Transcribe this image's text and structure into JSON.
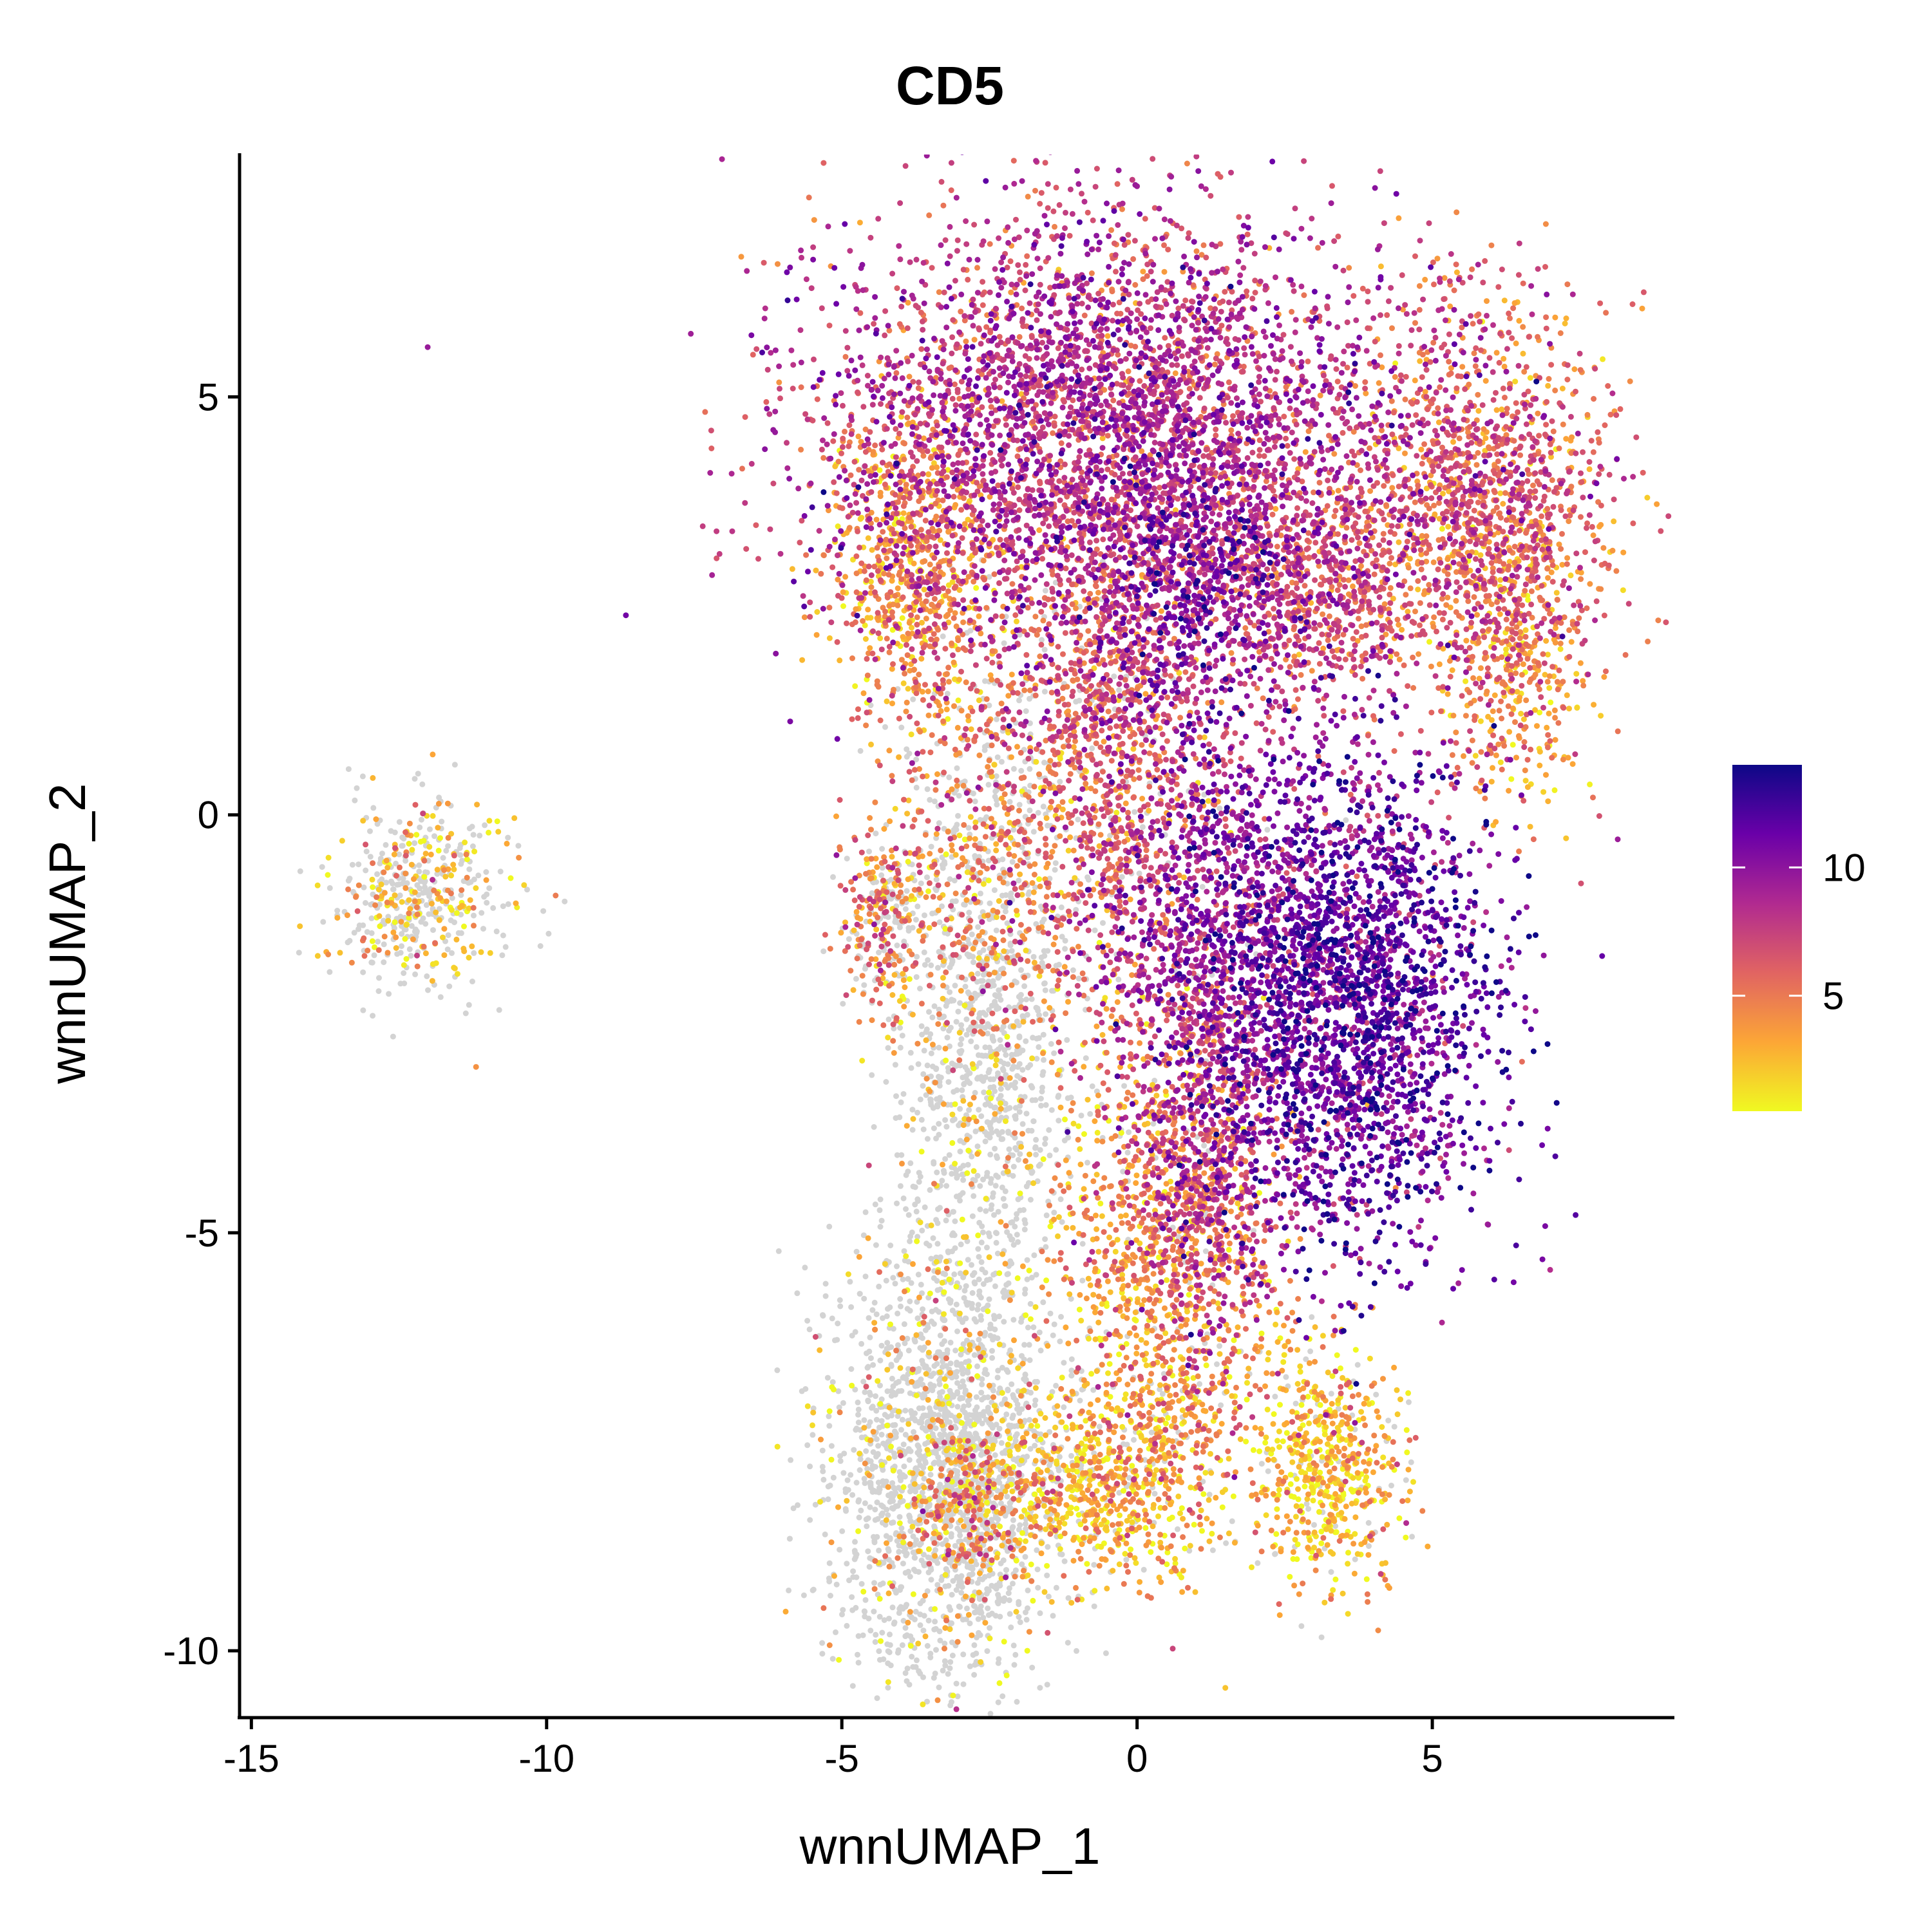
{
  "chart_data": {
    "type": "scatter",
    "title": "CD5",
    "xlabel": "wnnUMAP_1",
    "ylabel": "wnnUMAP_2",
    "xlim": [
      -15.2,
      9.1
    ],
    "ylim": [
      -10.8,
      7.9
    ],
    "x_ticks": [
      -15,
      -10,
      -5,
      0,
      5
    ],
    "x_tick_labels": [
      "-15",
      "-10",
      "-5",
      "0",
      "5"
    ],
    "y_ticks": [
      -10,
      -5,
      0,
      5
    ],
    "y_tick_labels": [
      "-10",
      "-5",
      "0",
      "5"
    ],
    "grid": false,
    "legend_position": "right",
    "colorbar": {
      "min": 0.5,
      "max": 14,
      "ticks": [
        5,
        10
      ],
      "tick_labels": [
        "5",
        "10"
      ],
      "colors": [
        "#f0f921",
        "#fca636",
        "#e16462",
        "#b12a90",
        "#6a00a8",
        "#0d0887"
      ],
      "zero_color": "#d3d3d3"
    },
    "clusters": [
      {
        "name": "isolated-left",
        "cx": -12.2,
        "cy": -1.0,
        "sx": 0.75,
        "sy": 0.55,
        "level": 2.5,
        "zero_frac": 0.6,
        "weight": 500
      },
      {
        "name": "top-blob",
        "cx": -0.5,
        "cy": 4.6,
        "sx": 2.4,
        "sy": 1.3,
        "level": 8.0,
        "zero_frac": 0.0,
        "weight": 4200
      },
      {
        "name": "top-left-edge",
        "cx": -3.8,
        "cy": 3.0,
        "sx": 0.7,
        "sy": 1.0,
        "level": 4.0,
        "zero_frac": 0.0,
        "weight": 700
      },
      {
        "name": "upper-right-arm",
        "cx": 5.8,
        "cy": 3.8,
        "sx": 1.1,
        "sy": 1.1,
        "level": 6.0,
        "zero_frac": 0.0,
        "weight": 1400
      },
      {
        "name": "arm-bridge",
        "cx": 3.0,
        "cy": 2.7,
        "sx": 1.0,
        "sy": 0.7,
        "level": 6.5,
        "zero_frac": 0.0,
        "weight": 700
      },
      {
        "name": "right-arm-tail",
        "cx": 6.4,
        "cy": 1.8,
        "sx": 0.6,
        "sy": 0.9,
        "level": 4.0,
        "zero_frac": 0.0,
        "weight": 400
      },
      {
        "name": "center-hole-ring",
        "cx": 1.0,
        "cy": 2.8,
        "sx": 0.9,
        "sy": 0.9,
        "level": 10.0,
        "zero_frac": 0.0,
        "weight": 600
      },
      {
        "name": "middle-stream",
        "cx": -0.4,
        "cy": 1.0,
        "sx": 0.8,
        "sy": 1.4,
        "level": 6.0,
        "zero_frac": 0.05,
        "weight": 1100
      },
      {
        "name": "right-mid-blob",
        "cx": 3.6,
        "cy": -2.2,
        "sx": 1.2,
        "sy": 1.5,
        "level": 11.0,
        "zero_frac": 0.0,
        "weight": 2600
      },
      {
        "name": "center-right-mix",
        "cx": 1.2,
        "cy": -1.5,
        "sx": 1.0,
        "sy": 1.3,
        "level": 9.0,
        "zero_frac": 0.02,
        "weight": 1200
      },
      {
        "name": "lower-stream",
        "cx": 0.5,
        "cy": -5.5,
        "sx": 0.9,
        "sy": 1.6,
        "level": 4.0,
        "zero_frac": 0.05,
        "weight": 1300
      },
      {
        "name": "lower-stream-purple",
        "cx": 1.2,
        "cy": -4.4,
        "sx": 0.6,
        "sy": 1.0,
        "level": 7.5,
        "zero_frac": 0.0,
        "weight": 500
      },
      {
        "name": "bottom-center",
        "cx": -0.6,
        "cy": -8.0,
        "sx": 1.0,
        "sy": 0.6,
        "level": 2.5,
        "zero_frac": 0.15,
        "weight": 700
      },
      {
        "name": "bottom-right-blob",
        "cx": 3.2,
        "cy": -7.8,
        "sx": 0.6,
        "sy": 0.7,
        "level": 2.5,
        "zero_frac": 0.1,
        "weight": 600
      },
      {
        "name": "left-small-arc",
        "cx": -4.3,
        "cy": -1.2,
        "sx": 0.35,
        "sy": 0.6,
        "level": 5.0,
        "zero_frac": 0.3,
        "weight": 300
      },
      {
        "name": "gray-bottom-lobe",
        "cx": -3.3,
        "cy": -7.8,
        "sx": 0.95,
        "sy": 1.3,
        "level": 2.0,
        "zero_frac": 0.85,
        "weight": 2000
      },
      {
        "name": "gray-mid-stream",
        "cx": -2.6,
        "cy": -3.2,
        "sx": 0.7,
        "sy": 1.4,
        "level": 2.0,
        "zero_frac": 0.85,
        "weight": 900
      },
      {
        "name": "gray-left-column",
        "cx": -2.5,
        "cy": -0.3,
        "sx": 0.9,
        "sy": 1.4,
        "level": 5.0,
        "zero_frac": 0.35,
        "weight": 800
      },
      {
        "name": "lower-left-red",
        "cx": -2.8,
        "cy": -8.3,
        "sx": 0.45,
        "sy": 0.5,
        "level": 5.0,
        "zero_frac": 0.3,
        "weight": 300
      }
    ]
  }
}
